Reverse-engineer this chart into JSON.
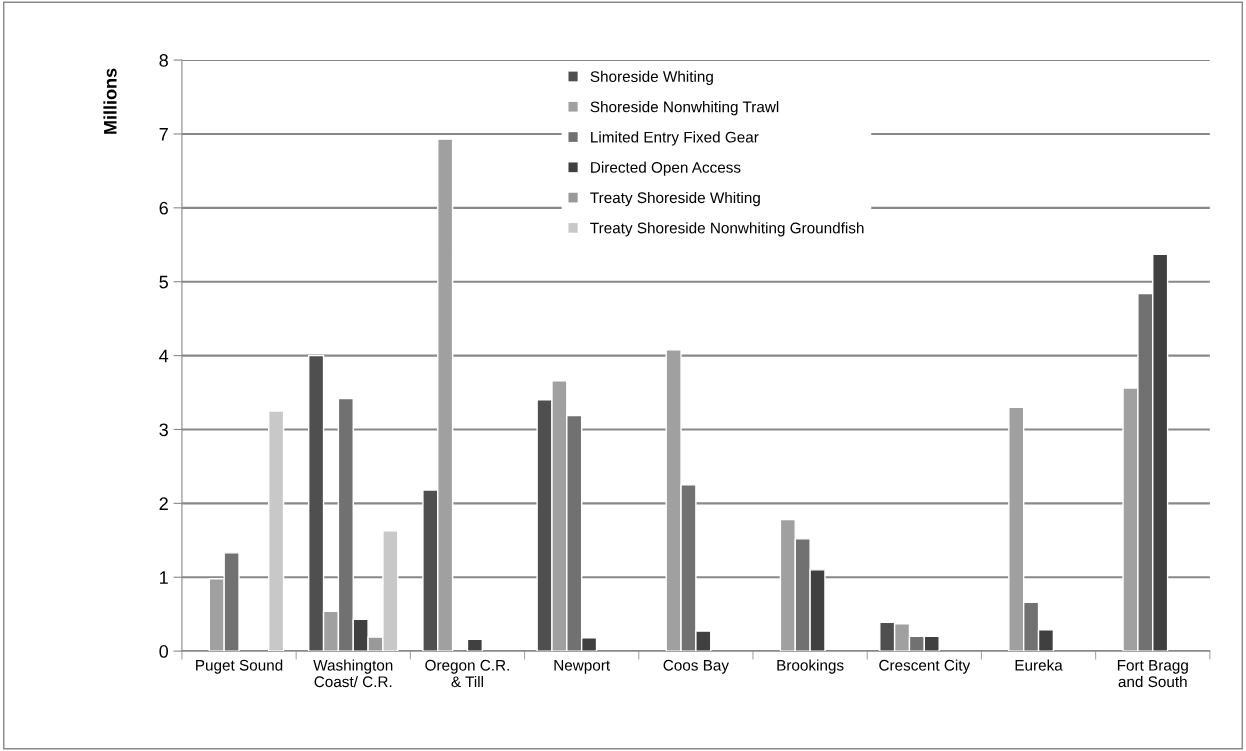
{
  "chart_data": {
    "type": "bar",
    "ylabel": "Millions",
    "categories": [
      "Puget Sound",
      "Washington\nCoast/ C.R.",
      "Oregon C.R.\n& Till",
      "Newport",
      "Coos Bay",
      "Brookings",
      "Crescent City",
      "Eureka",
      "Fort Bragg\nand South"
    ],
    "series": [
      {
        "name": "Shoreside Whiting",
        "color": "#4f4f4f",
        "values": [
          null,
          4.0,
          2.18,
          3.4,
          null,
          null,
          0.39,
          null,
          null
        ]
      },
      {
        "name": "Shoreside Nonwhiting Trawl",
        "color": "#a0a0a0",
        "values": [
          0.98,
          0.54,
          6.93,
          3.66,
          4.08,
          1.78,
          0.37,
          3.3,
          3.56
        ]
      },
      {
        "name": "Limited Entry Fixed Gear",
        "color": "#717171",
        "values": [
          1.33,
          3.42,
          null,
          3.19,
          2.25,
          1.52,
          0.2,
          0.66,
          4.84
        ]
      },
      {
        "name": "Directed Open Access",
        "color": "#404040",
        "values": [
          null,
          0.43,
          0.16,
          0.18,
          0.27,
          1.1,
          0.2,
          0.29,
          5.37
        ]
      },
      {
        "name": "Treaty Shoreside Whiting",
        "color": "#999999",
        "values": [
          null,
          0.19,
          null,
          null,
          null,
          null,
          null,
          null,
          null
        ]
      },
      {
        "name": "Treaty Shoreside Nonwhiting Groundfish",
        "color": "#c8c8c8",
        "values": [
          3.25,
          1.63,
          null,
          null,
          null,
          null,
          null,
          null,
          null
        ]
      }
    ],
    "ylim": [
      0,
      8
    ],
    "yticks": [
      0,
      1,
      2,
      3,
      4,
      5,
      6,
      7,
      8
    ],
    "grid": "y",
    "legend": "top"
  }
}
